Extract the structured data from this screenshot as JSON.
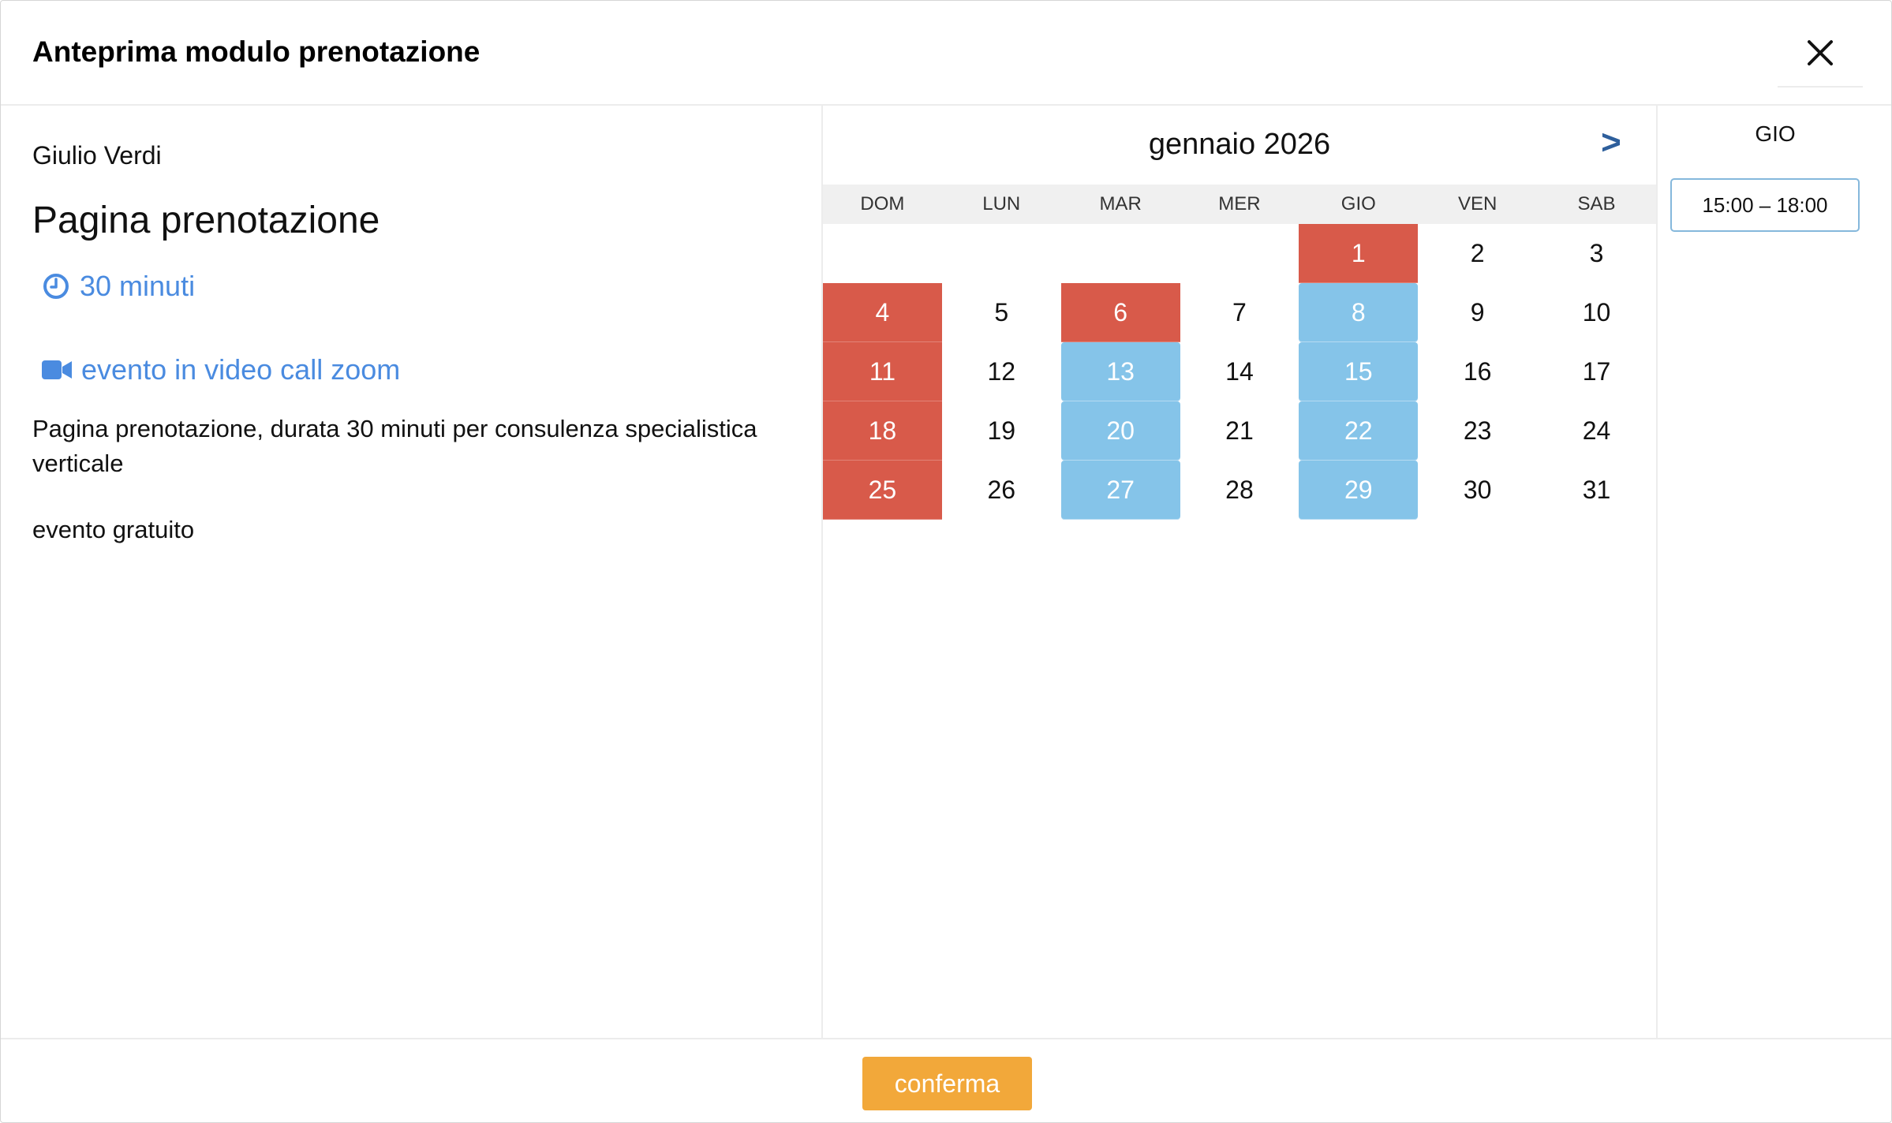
{
  "modal": {
    "title": "Anteprima modulo prenotazione",
    "close_icon": "close-icon"
  },
  "info": {
    "owner": "Giulio Verdi",
    "page_title": "Pagina prenotazione",
    "duration": "30 minuti",
    "duration_icon": "clock-icon",
    "location": "evento in video call zoom",
    "location_icon": "video-camera-icon",
    "description": "Pagina prenotazione, durata 30 minuti per consulenza specialistica verticale",
    "price": "evento gratuito",
    "accent_color": "#4a8be0"
  },
  "calendar": {
    "month_label": "gennaio 2026",
    "next_label": ">",
    "weekdays": [
      "DOM",
      "LUN",
      "MAR",
      "MER",
      "GIO",
      "VEN",
      "SAB"
    ],
    "leading_blanks": 4,
    "busy_color": "#d85a4a",
    "available_color": "#85c4e9",
    "days": [
      {
        "n": "1",
        "state": "busy"
      },
      {
        "n": "2",
        "state": "normal"
      },
      {
        "n": "3",
        "state": "normal"
      },
      {
        "n": "4",
        "state": "busy"
      },
      {
        "n": "5",
        "state": "normal"
      },
      {
        "n": "6",
        "state": "busy"
      },
      {
        "n": "7",
        "state": "normal"
      },
      {
        "n": "8",
        "state": "available"
      },
      {
        "n": "9",
        "state": "normal"
      },
      {
        "n": "10",
        "state": "normal"
      },
      {
        "n": "11",
        "state": "busy"
      },
      {
        "n": "12",
        "state": "normal"
      },
      {
        "n": "13",
        "state": "available"
      },
      {
        "n": "14",
        "state": "normal"
      },
      {
        "n": "15",
        "state": "available"
      },
      {
        "n": "16",
        "state": "normal"
      },
      {
        "n": "17",
        "state": "normal"
      },
      {
        "n": "18",
        "state": "busy"
      },
      {
        "n": "19",
        "state": "normal"
      },
      {
        "n": "20",
        "state": "available"
      },
      {
        "n": "21",
        "state": "normal"
      },
      {
        "n": "22",
        "state": "available"
      },
      {
        "n": "23",
        "state": "normal"
      },
      {
        "n": "24",
        "state": "normal"
      },
      {
        "n": "25",
        "state": "busy"
      },
      {
        "n": "26",
        "state": "normal"
      },
      {
        "n": "27",
        "state": "available"
      },
      {
        "n": "28",
        "state": "normal"
      },
      {
        "n": "29",
        "state": "available"
      },
      {
        "n": "30",
        "state": "normal"
      },
      {
        "n": "31",
        "state": "normal"
      }
    ]
  },
  "slots": {
    "day_label": "GIO",
    "items": [
      "15:00 – 18:00"
    ]
  },
  "footer": {
    "confirm_label": "conferma",
    "confirm_color": "#f2a83a"
  }
}
